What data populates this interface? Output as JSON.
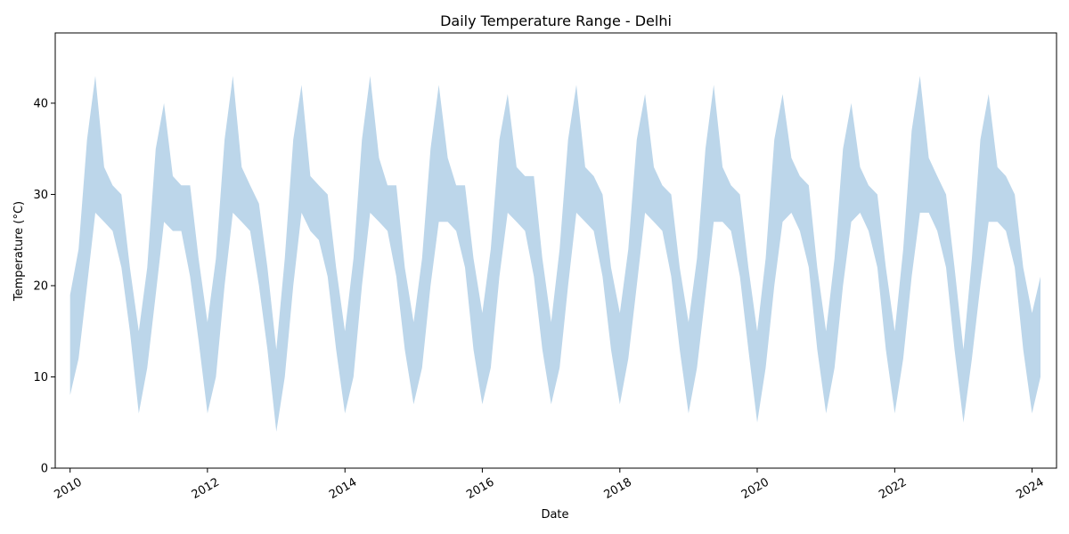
{
  "chart_data": {
    "type": "area",
    "title": "Daily Temperature Range - Delhi",
    "xlabel": "Date",
    "ylabel": "Temperature (°C)",
    "xlim": [
      "2009-10-14",
      "2024-05-10"
    ],
    "ylim": [
      0,
      47.7
    ],
    "x_ticks": [
      "2010",
      "2012",
      "2014",
      "2016",
      "2018",
      "2020",
      "2022",
      "2024"
    ],
    "y_ticks": [
      0,
      10,
      20,
      30,
      40
    ],
    "grid": false,
    "legend": "none",
    "fill_color": "#bcd6ea",
    "series": [
      {
        "x": [
          "2010-01-01",
          "2010-02-15",
          "2010-04-01",
          "2010-05-15",
          "2010-07-01",
          "2010-08-15",
          "2010-10-01",
          "2010-11-15",
          "2011-01-01",
          "2011-02-15",
          "2011-04-01",
          "2011-05-15",
          "2011-07-01",
          "2011-08-15",
          "2011-10-01",
          "2011-11-15",
          "2012-01-01",
          "2012-02-15",
          "2012-04-01",
          "2012-05-15",
          "2012-07-01",
          "2012-08-15",
          "2012-10-01",
          "2012-11-15",
          "2013-01-01",
          "2013-02-15",
          "2013-04-01",
          "2013-05-15",
          "2013-07-01",
          "2013-08-15",
          "2013-10-01",
          "2013-11-15",
          "2014-01-01",
          "2014-02-15",
          "2014-04-01",
          "2014-05-15",
          "2014-07-01",
          "2014-08-15",
          "2014-10-01",
          "2014-11-15",
          "2015-01-01",
          "2015-02-15",
          "2015-04-01",
          "2015-05-15",
          "2015-07-01",
          "2015-08-15",
          "2015-10-01",
          "2015-11-15",
          "2016-01-01",
          "2016-02-15",
          "2016-04-01",
          "2016-05-15",
          "2016-07-01",
          "2016-08-15",
          "2016-10-01",
          "2016-11-15",
          "2017-01-01",
          "2017-02-15",
          "2017-04-01",
          "2017-05-15",
          "2017-07-01",
          "2017-08-15",
          "2017-10-01",
          "2017-11-15",
          "2018-01-01",
          "2018-02-15",
          "2018-04-01",
          "2018-05-15",
          "2018-07-01",
          "2018-08-15",
          "2018-10-01",
          "2018-11-15",
          "2019-01-01",
          "2019-02-15",
          "2019-04-01",
          "2019-05-15",
          "2019-07-01",
          "2019-08-15",
          "2019-10-01",
          "2019-11-15",
          "2020-01-01",
          "2020-02-15",
          "2020-04-01",
          "2020-05-15",
          "2020-07-01",
          "2020-08-15",
          "2020-10-01",
          "2020-11-15",
          "2021-01-01",
          "2021-02-15",
          "2021-04-01",
          "2021-05-15",
          "2021-07-01",
          "2021-08-15",
          "2021-10-01",
          "2021-11-15",
          "2022-01-01",
          "2022-02-15",
          "2022-04-01",
          "2022-05-15",
          "2022-07-01",
          "2022-08-15",
          "2022-10-01",
          "2022-11-15",
          "2023-01-01",
          "2023-02-15",
          "2023-04-01",
          "2023-05-15",
          "2023-07-01",
          "2023-08-15",
          "2023-10-01",
          "2023-11-15",
          "2024-01-01",
          "2024-02-15"
        ],
        "min": [
          8,
          12,
          20,
          28,
          27,
          26,
          22,
          15,
          6,
          11,
          19,
          27,
          26,
          26,
          21,
          14,
          6,
          10,
          20,
          28,
          27,
          26,
          20,
          13,
          4,
          10,
          20,
          28,
          26,
          25,
          21,
          13,
          6,
          10,
          20,
          28,
          27,
          26,
          21,
          13,
          7,
          11,
          20,
          27,
          27,
          26,
          22,
          13,
          7,
          11,
          21,
          28,
          27,
          26,
          21,
          13,
          7,
          11,
          20,
          28,
          27,
          26,
          21,
          13,
          7,
          12,
          20,
          28,
          27,
          26,
          21,
          13,
          6,
          11,
          19,
          27,
          27,
          26,
          21,
          13,
          5,
          11,
          20,
          27,
          28,
          26,
          22,
          13,
          6,
          11,
          20,
          27,
          28,
          26,
          22,
          13,
          6,
          12,
          21,
          28,
          28,
          26,
          22,
          13,
          5,
          12,
          20,
          27,
          27,
          26,
          22,
          13,
          6,
          10
        ],
        "max": [
          19,
          24,
          36,
          43,
          33,
          31,
          30,
          22,
          15,
          22,
          35,
          40,
          32,
          31,
          31,
          23,
          16,
          23,
          36,
          43,
          33,
          31,
          29,
          22,
          13,
          23,
          36,
          42,
          32,
          31,
          30,
          22,
          15,
          23,
          36,
          43,
          34,
          31,
          31,
          22,
          16,
          23,
          35,
          42,
          34,
          31,
          31,
          23,
          17,
          24,
          36,
          41,
          33,
          32,
          32,
          23,
          16,
          24,
          36,
          42,
          33,
          32,
          30,
          22,
          17,
          24,
          36,
          41,
          33,
          31,
          30,
          22,
          16,
          23,
          35,
          42,
          33,
          31,
          30,
          22,
          15,
          23,
          36,
          41,
          34,
          32,
          31,
          22,
          15,
          23,
          35,
          40,
          33,
          31,
          30,
          22,
          15,
          24,
          37,
          43,
          34,
          32,
          30,
          22,
          13,
          23,
          36,
          41,
          33,
          32,
          30,
          22,
          17,
          21
        ]
      }
    ]
  }
}
